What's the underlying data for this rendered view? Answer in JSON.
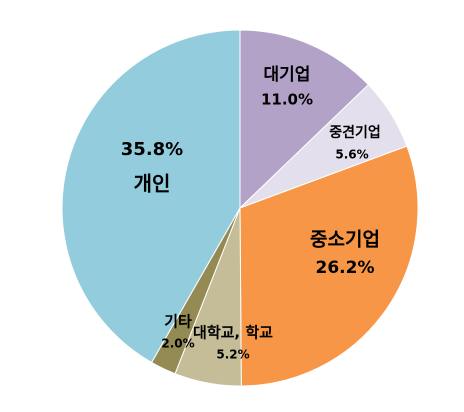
{
  "chart_data": {
    "type": "pie",
    "categories": [
      "대기업",
      "중견기업",
      "중소기업",
      "대학교, 학교",
      "기타",
      "개인"
    ],
    "values": [
      11.0,
      5.6,
      26.2,
      5.2,
      2.0,
      35.8
    ],
    "value_labels": [
      "11.0%",
      "5.6%",
      "26.2%",
      "5.2%",
      "2.0%",
      "35.8%"
    ],
    "colors": [
      "#b3a2c7",
      "#e4dfec",
      "#f79646",
      "#c4bd97",
      "#948a54",
      "#93cddd"
    ]
  }
}
